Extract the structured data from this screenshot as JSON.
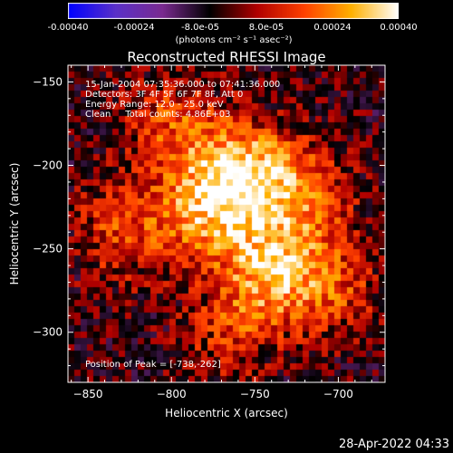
{
  "colorbar": {
    "tick_labels": [
      "-0.00040",
      "-0.00024",
      "-8.0e-05",
      "8.0e-05",
      "0.00024",
      "0.00040"
    ],
    "unit_label": "(photons cm⁻² s⁻¹ asec⁻²)",
    "range": [
      -0.0004,
      0.0004
    ],
    "colors": [
      "#0000ff",
      "#5a30c8",
      "#7a2a90",
      "#000000",
      "#b00000",
      "#ff4000",
      "#ffb000",
      "#ffffff"
    ]
  },
  "title": "Reconstructed RHESSI Image",
  "info": {
    "time": "15-Jan-2004 07:35:36.000 to 07:41:36.000",
    "detectors": "Detectors: 3F 4F 5F 6F 7F 8F, Att 0",
    "energy": "Energy Range: 12.0 - 25.0 keV",
    "method": "Clean     Total counts: 4.86E+03",
    "peak": "Position of Peak = [-738,-262]"
  },
  "axes": {
    "xlabel": "Heliocentric X (arcsec)",
    "ylabel": "Heliocentric Y (arcsec)",
    "xlim": [
      -862,
      -672
    ],
    "ylim": [
      -330,
      -140
    ],
    "x_ticks": [
      -850,
      -800,
      -750,
      -700
    ],
    "y_ticks": [
      -150,
      -200,
      -250,
      -300
    ],
    "x_tick_labels": [
      "−850",
      "−800",
      "−750",
      "−700"
    ],
    "y_tick_labels": [
      "−150",
      "−200",
      "−250",
      "−300"
    ]
  },
  "image": {
    "peak_xy": [
      -738,
      -262
    ],
    "sources": [
      {
        "x": -758,
        "y": -205,
        "strength": 1.0
      },
      {
        "x": -738,
        "y": -262,
        "strength": 0.95
      },
      {
        "x": -780,
        "y": -228,
        "strength": 0.7
      },
      {
        "x": -800,
        "y": -175,
        "strength": 0.55
      },
      {
        "x": -830,
        "y": -240,
        "strength": 0.55
      },
      {
        "x": -720,
        "y": -215,
        "strength": 0.6
      },
      {
        "x": -700,
        "y": -275,
        "strength": 0.45
      },
      {
        "x": -765,
        "y": -300,
        "strength": 0.45
      }
    ]
  },
  "footer": {
    "timestamp": "28-Apr-2022 04:33"
  }
}
